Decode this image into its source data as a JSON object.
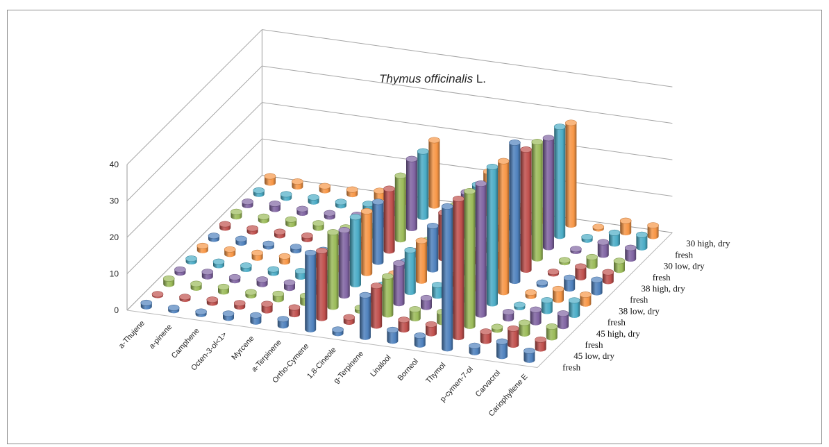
{
  "chart_data": {
    "type": "bar",
    "style": "3d-cylinder",
    "title_italic": "Thymus officinalis",
    "title_suffix": " L.",
    "categories": [
      "a-Thujene",
      "a-pinene",
      "Camphene",
      "Octen-3-ol<1>",
      "Myrcene",
      "a-Terpinene",
      "Ortho-Cymene",
      "1,8-Cineole",
      "g-Terpinene",
      "Linalool",
      "Borneol",
      "Thymol",
      "p-cymen-7-ol",
      "Carvacrol",
      "Cariophyllene E"
    ],
    "yticks": [
      0,
      10,
      20,
      30,
      40
    ],
    "ylim": [
      0,
      40
    ],
    "grid": true,
    "series": [
      {
        "name": "fresh",
        "color": "#4f81bd",
        "values": [
          1.0,
          0.7,
          0.7,
          1.2,
          1.8,
          1.8,
          21.0,
          1.0,
          11.5,
          3.0,
          2.5,
          39.0,
          1.8,
          4.0,
          2.5
        ]
      },
      {
        "name": "45 low,  dry",
        "color": "#c0504d",
        "values": [
          0.3,
          0.6,
          0.9,
          1.0,
          1.8,
          1.9,
          18.5,
          1.3,
          11.0,
          2.7,
          2.5,
          38.0,
          2.6,
          4.5,
          2.5
        ]
      },
      {
        "name": "fresh",
        "color": "#9bbb59",
        "values": [
          1.5,
          1.1,
          1.3,
          0.9,
          1.5,
          2.0,
          20.5,
          0.8,
          10.5,
          2.5,
          2.8,
          37.0,
          0.8,
          3.0,
          3.0
        ]
      },
      {
        "name": "45 high, dry",
        "color": "#8064a2",
        "values": [
          0.9,
          1.3,
          0.9,
          1.3,
          1.5,
          2.5,
          18.0,
          1.0,
          11.0,
          2.5,
          2.0,
          36.0,
          1.8,
          3.5,
          3.5
        ]
      },
      {
        "name": "fresh",
        "color": "#4bacc6",
        "values": [
          0.8,
          1.0,
          1.0,
          1.0,
          1.6,
          2.0,
          18.5,
          1.0,
          11.5,
          3.0,
          2.5,
          37.5,
          0.7,
          3.0,
          4.0
        ]
      },
      {
        "name": "38 low, dry",
        "color": "#f79646",
        "values": [
          1.2,
          1.3,
          1.4,
          1.5,
          2.5,
          3.0,
          17.0,
          1.0,
          11.0,
          2.8,
          2.8,
          36.0,
          1.0,
          3.0,
          2.5
        ]
      },
      {
        "name": "fresh",
        "color": "#4f81bd",
        "values": [
          0.9,
          1.1,
          0.8,
          1.0,
          1.2,
          2.5,
          16.5,
          1.2,
          12.0,
          3.0,
          2.2,
          38.0,
          0.6,
          3.0,
          3.5
        ]
      },
      {
        "name": "38 high, dry",
        "color": "#c0504d",
        "values": [
          1.0,
          0.9,
          1.0,
          1.0,
          1.5,
          2.0,
          17.0,
          1.0,
          12.5,
          3.5,
          3.0,
          33.0,
          0.5,
          3.0,
          2.5
        ]
      },
      {
        "name": "fresh",
        "color": "#9bbb59",
        "values": [
          1.3,
          1.0,
          1.3,
          1.3,
          1.2,
          2.6,
          17.5,
          0.9,
          11.5,
          3.0,
          2.5,
          32.0,
          0.6,
          2.5,
          2.5
        ]
      },
      {
        "name": "30 low, dry",
        "color": "#8064a2",
        "values": [
          1.0,
          1.5,
          1.1,
          1.0,
          1.6,
          2.5,
          19.0,
          1.2,
          12.0,
          3.5,
          1.8,
          30.0,
          0.6,
          3.5,
          3.0
        ]
      },
      {
        "name": "fresh",
        "color": "#4bacc6",
        "values": [
          1.0,
          1.0,
          1.2,
          1.0,
          1.5,
          2.5,
          18.0,
          1.0,
          11.0,
          3.0,
          2.5,
          30.0,
          0.8,
          3.0,
          3.5
        ]
      },
      {
        "name": "30 high, dry",
        "color": "#f79646",
        "values": [
          1.8,
          1.4,
          1.2,
          1.3,
          2.0,
          2.5,
          18.0,
          1.2,
          11.5,
          3.2,
          2.8,
          28.0,
          0.5,
          3.2,
          3.0
        ]
      }
    ]
  }
}
